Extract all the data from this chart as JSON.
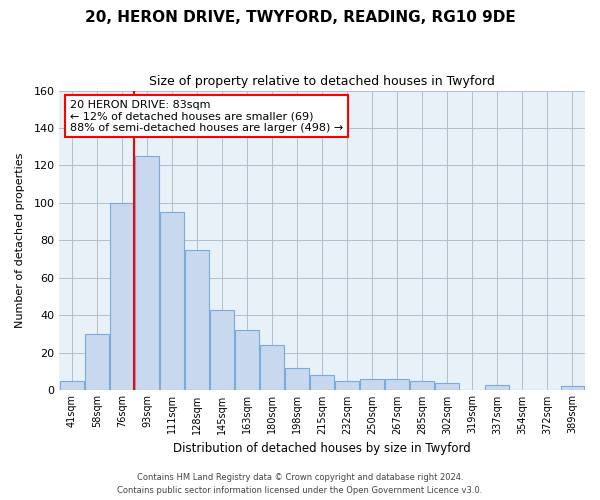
{
  "title": "20, HERON DRIVE, TWYFORD, READING, RG10 9DE",
  "subtitle": "Size of property relative to detached houses in Twyford",
  "xlabel": "Distribution of detached houses by size in Twyford",
  "ylabel": "Number of detached properties",
  "bar_labels": [
    "41sqm",
    "58sqm",
    "76sqm",
    "93sqm",
    "111sqm",
    "128sqm",
    "145sqm",
    "163sqm",
    "180sqm",
    "198sqm",
    "215sqm",
    "232sqm",
    "250sqm",
    "267sqm",
    "285sqm",
    "302sqm",
    "319sqm",
    "337sqm",
    "354sqm",
    "372sqm",
    "389sqm"
  ],
  "bar_values": [
    5,
    30,
    100,
    125,
    95,
    75,
    43,
    32,
    24,
    12,
    8,
    5,
    6,
    6,
    5,
    4,
    0,
    3,
    0,
    0,
    2
  ],
  "bar_color": "#c8d8ee",
  "bar_edge_color": "#7aacda",
  "plot_bg_color": "#e8f0f8",
  "ylim": [
    0,
    160
  ],
  "yticks": [
    0,
    20,
    40,
    60,
    80,
    100,
    120,
    140,
    160
  ],
  "red_line_bar_index": 2,
  "annotation_title": "20 HERON DRIVE: 83sqm",
  "annotation_line1": "← 12% of detached houses are smaller (69)",
  "annotation_line2": "88% of semi-detached houses are larger (498) →",
  "footnote1": "Contains HM Land Registry data © Crown copyright and database right 2024.",
  "footnote2": "Contains public sector information licensed under the Open Government Licence v3.0.",
  "background_color": "#ffffff",
  "grid_color": "#b0bece"
}
